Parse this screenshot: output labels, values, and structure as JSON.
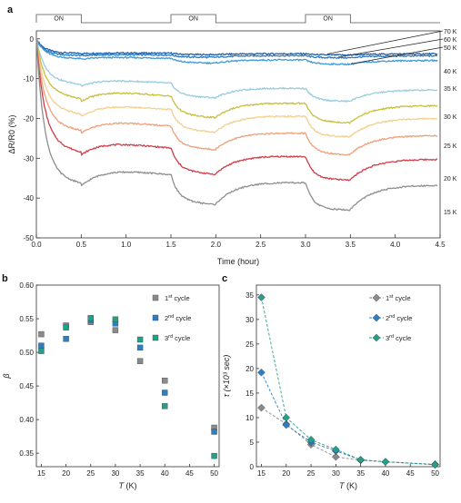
{
  "chart_data": [
    {
      "panel": "a",
      "type": "line",
      "xlabel": "Time (hour)",
      "ylabel": "ΔR/R0 (%)",
      "xlim": [
        0,
        4.5
      ],
      "ylim": [
        -50,
        2
      ],
      "xticks": [
        "0.0",
        "0.5",
        "1.0",
        "1.5",
        "2.0",
        "2.5",
        "3.0",
        "3.5",
        "4.0",
        "4.5"
      ],
      "yticks": [
        "0",
        "-10",
        "-20",
        "-30",
        "-40",
        "-50"
      ],
      "on_label": "ON",
      "on_periods": [
        [
          0,
          0.5
        ],
        [
          1.5,
          2.0
        ],
        [
          3.0,
          3.5
        ]
      ],
      "series": [
        {
          "name": "70 K",
          "color": "#1f5fa8",
          "a": 3.5,
          "b": 0.6,
          "r": 0.3
        },
        {
          "name": "60 K",
          "color": "#2a78c0",
          "a": 4.0,
          "b": 0.8,
          "r": 0.5
        },
        {
          "name": "50 K",
          "color": "#3c9ad8",
          "a": 4.5,
          "b": 2.0,
          "r": 1.0
        },
        {
          "name": "40 K",
          "color": "#96cce0",
          "a": 10.0,
          "b": 6.0,
          "r": 3.0
        },
        {
          "name": "35 K",
          "color": "#c8bf3c",
          "a": 13.0,
          "b": 8.5,
          "r": 4.5
        },
        {
          "name": "30 K",
          "color": "#f4cf8e",
          "a": 17.0,
          "b": 8.0,
          "r": 4.8
        },
        {
          "name": "25 K",
          "color": "#eda07a",
          "a": 21.0,
          "b": 8.5,
          "r": 5.0
        },
        {
          "name": "20 K",
          "color": "#cf3d49",
          "a": 26.0,
          "b": 10.0,
          "r": 5.5
        },
        {
          "name": "15 K",
          "color": "#8e8e8e",
          "a": 34.0,
          "b": 9.5,
          "r": 6.5
        }
      ]
    },
    {
      "panel": "b",
      "type": "scatter",
      "xlabel": "T (K)",
      "ylabel": "β",
      "xlim": [
        14,
        51
      ],
      "ylim": [
        0.33,
        0.6
      ],
      "xticks": [
        15,
        20,
        25,
        30,
        35,
        40,
        45,
        50
      ],
      "yticks": [
        "0.35",
        "0.40",
        "0.45",
        "0.50",
        "0.55",
        "0.60"
      ],
      "legend_position": "top-right",
      "series": [
        {
          "name": "1st cycle",
          "base": "1",
          "sup": "st",
          "rest": " cycle",
          "color": "#8a8a8a",
          "x": [
            15,
            20,
            25,
            30,
            35,
            40,
            50
          ],
          "y": [
            0.527,
            0.54,
            0.545,
            0.533,
            0.487,
            0.458,
            0.388
          ]
        },
        {
          "name": "2nd cycle",
          "base": "2",
          "sup": "nd",
          "rest": " cycle",
          "color": "#2b7fc4",
          "x": [
            15,
            20,
            25,
            30,
            35,
            40,
            50
          ],
          "y": [
            0.51,
            0.52,
            0.548,
            0.543,
            0.507,
            0.44,
            0.382
          ]
        },
        {
          "name": "3rd cycle",
          "base": "3",
          "sup": "rd",
          "rest": " cycle",
          "color": "#24a08a",
          "x": [
            15,
            20,
            25,
            30,
            35,
            40,
            50
          ],
          "y": [
            0.502,
            0.537,
            0.551,
            0.549,
            0.519,
            0.42,
            0.346
          ]
        }
      ]
    },
    {
      "panel": "c",
      "type": "line",
      "xlabel": "T (K)",
      "ylabel": "τ (×10³ sec)",
      "xlim": [
        14,
        51
      ],
      "ylim": [
        0,
        37
      ],
      "xticks": [
        15,
        20,
        25,
        30,
        35,
        40,
        45,
        50
      ],
      "yticks": [
        0,
        5,
        10,
        15,
        20,
        25,
        30,
        35
      ],
      "legend_position": "top-right",
      "series": [
        {
          "name": "1st cycle",
          "base": "1",
          "sup": "st",
          "rest": " cycle",
          "color": "#8a8a8a",
          "x": [
            15,
            20,
            25,
            30,
            35,
            40,
            50
          ],
          "y": [
            12.0,
            8.7,
            4.5,
            2.0,
            1.3,
            1.0,
            0.5
          ]
        },
        {
          "name": "2nd cycle",
          "base": "2",
          "sup": "nd",
          "rest": " cycle",
          "color": "#2b7fc4",
          "x": [
            15,
            20,
            25,
            30,
            35,
            40,
            50
          ],
          "y": [
            19.2,
            8.5,
            5.0,
            3.2,
            1.4,
            1.0,
            0.4
          ]
        },
        {
          "name": "3rd cycle",
          "base": "3",
          "sup": "rd",
          "rest": " cycle",
          "color": "#24a08a",
          "x": [
            15,
            20,
            25,
            30,
            35,
            40,
            50
          ],
          "y": [
            34.5,
            10.0,
            5.5,
            3.5,
            1.4,
            1.0,
            0.4
          ]
        }
      ]
    }
  ]
}
